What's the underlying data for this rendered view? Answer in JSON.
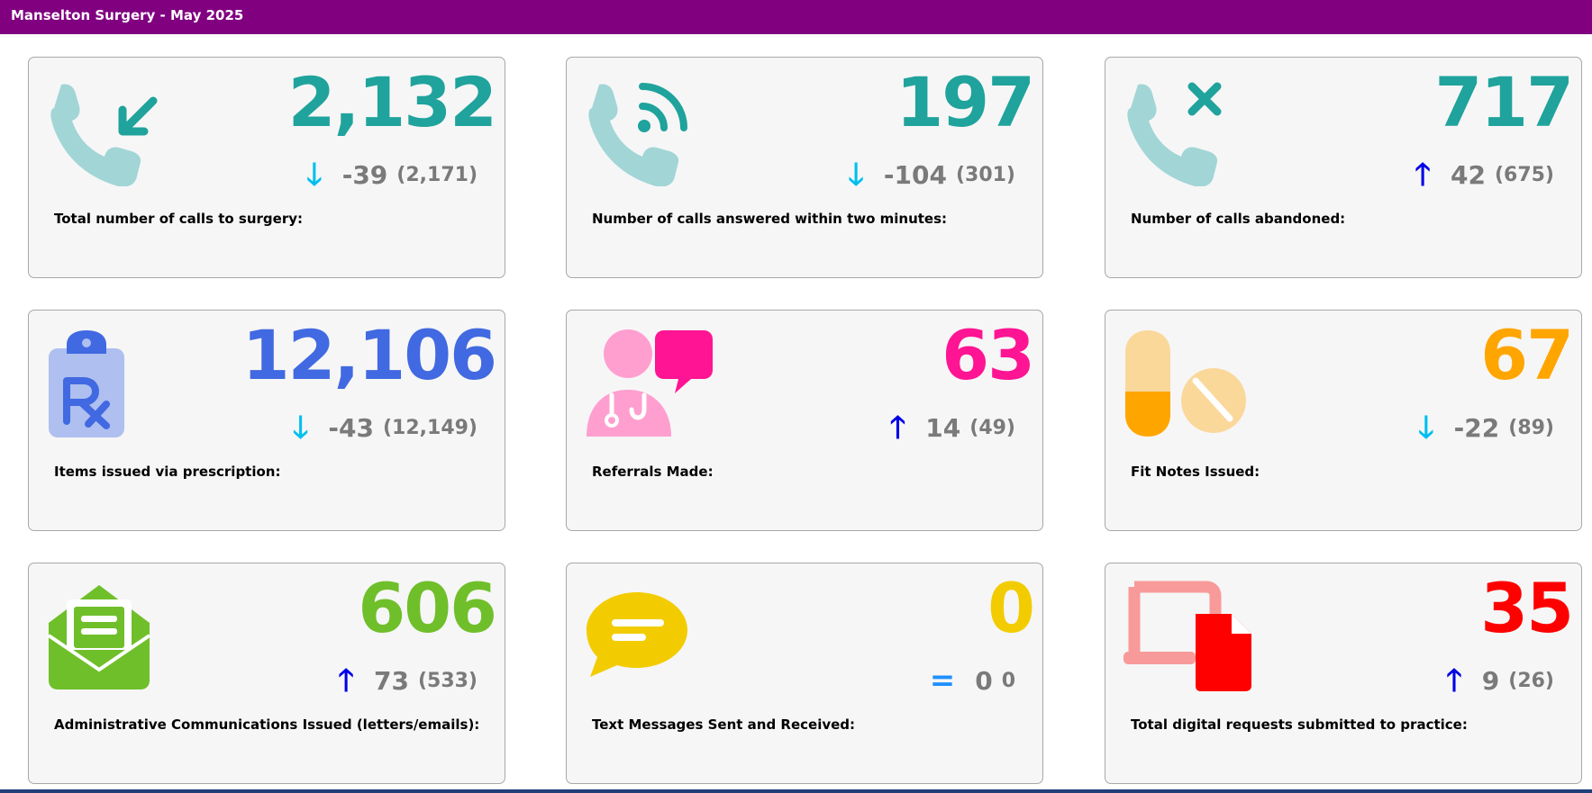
{
  "header": {
    "title": "Manselton Surgery - May 2025",
    "background": "#800080"
  },
  "arrows": {
    "down": "🡓",
    "up": "🡑",
    "equal": "="
  },
  "colors": {
    "down_arrow": "#00bfef",
    "up_arrow": "#0000e6",
    "equal_arrow": "#1e90ff",
    "delta_text": "#7a7a7a"
  },
  "cards": [
    {
      "label": "Total number of calls to surgery:",
      "value": "2,132",
      "delta": "-39",
      "previous": "(2,171)",
      "trend": "down",
      "color": "#1fa39c",
      "icon": "phone-incoming-icon"
    },
    {
      "label": "Number of calls answered within two minutes:",
      "value": "197",
      "delta": "-104",
      "previous": "(301)",
      "trend": "down",
      "color": "#1fa39c",
      "icon": "phone-signal-icon"
    },
    {
      "label": "Number of calls abandoned:",
      "value": "717",
      "delta": "42",
      "previous": "(675)",
      "trend": "up",
      "color": "#1fa39c",
      "icon": "phone-missed-icon"
    },
    {
      "label": "Items issued via prescription:",
      "value": "12,106",
      "delta": "-43",
      "previous": "(12,149)",
      "trend": "down",
      "color": "#4169e1",
      "icon": "prescription-clipboard-icon"
    },
    {
      "label": "Referrals Made:",
      "value": "63",
      "delta": "14",
      "previous": "(49)",
      "trend": "up",
      "color": "#ff1493",
      "icon": "doctor-chat-icon"
    },
    {
      "label": "Fit Notes Issued:",
      "value": "67",
      "delta": "-22",
      "previous": "(89)",
      "trend": "down",
      "color": "#ffa500",
      "icon": "pills-icon"
    },
    {
      "label": "Administrative Communications Issued (letters/emails):",
      "value": "606",
      "delta": "73",
      "previous": "(533)",
      "trend": "up",
      "color": "#6fbf2a",
      "icon": "open-envelope-icon"
    },
    {
      "label": "Text Messages Sent and Received:",
      "value": "0",
      "delta": "0",
      "previous": "0",
      "trend": "equal",
      "color": "#f2cc00",
      "icon": "chat-bubble-icon"
    },
    {
      "label": "Total digital requests submitted to practice:",
      "value": "35",
      "delta": "9",
      "previous": "(26)",
      "trend": "up",
      "color": "#ff0000",
      "icon": "laptop-document-icon"
    }
  ]
}
